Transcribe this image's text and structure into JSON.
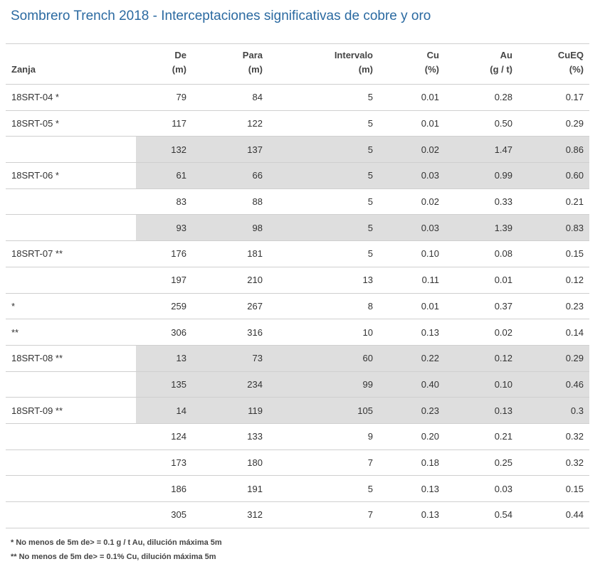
{
  "title": "Sombrero Trench 2018 - Interceptaciones significativas de cobre y oro",
  "headers": {
    "zanja": "Zanja",
    "de": [
      "De",
      "(m)"
    ],
    "para": [
      "Para",
      "(m)"
    ],
    "intervalo": [
      "Intervalo",
      "(m)"
    ],
    "cu": [
      "Cu",
      "(%)"
    ],
    "au": [
      "Au",
      "(g / t)"
    ],
    "cueq": [
      "CuEQ",
      "(%)"
    ]
  },
  "rows": [
    {
      "zanja": "18SRT-04 *",
      "de": "79",
      "para": "84",
      "intervalo": "5",
      "cu": "0.01",
      "au": "0.28",
      "cueq": "0.17",
      "shaded": false
    },
    {
      "zanja": "18SRT-05 *",
      "de": "117",
      "para": "122",
      "intervalo": "5",
      "cu": "0.01",
      "au": "0.50",
      "cueq": "0.29",
      "shaded": false
    },
    {
      "zanja": "",
      "de": "132",
      "para": "137",
      "intervalo": "5",
      "cu": "0.02",
      "au": "1.47",
      "cueq": "0.86",
      "shaded": true
    },
    {
      "zanja": "18SRT-06 *",
      "de": "61",
      "para": "66",
      "intervalo": "5",
      "cu": "0.03",
      "au": "0.99",
      "cueq": "0.60",
      "shaded": true
    },
    {
      "zanja": "",
      "de": "83",
      "para": "88",
      "intervalo": "5",
      "cu": "0.02",
      "au": "0.33",
      "cueq": "0.21",
      "shaded": false
    },
    {
      "zanja": "",
      "de": "93",
      "para": "98",
      "intervalo": "5",
      "cu": "0.03",
      "au": "1.39",
      "cueq": "0.83",
      "shaded": true
    },
    {
      "zanja": "18SRT-07 **",
      "de": "176",
      "para": "181",
      "intervalo": "5",
      "cu": "0.10",
      "au": "0.08",
      "cueq": "0.15",
      "shaded": false
    },
    {
      "zanja": "",
      "de": "197",
      "para": "210",
      "intervalo": "13",
      "cu": "0.11",
      "au": "0.01",
      "cueq": "0.12",
      "shaded": false
    },
    {
      "zanja": "*",
      "de": "259",
      "para": "267",
      "intervalo": "8",
      "cu": "0.01",
      "au": "0.37",
      "cueq": "0.23",
      "shaded": false
    },
    {
      "zanja": "**",
      "de": "306",
      "para": "316",
      "intervalo": "10",
      "cu": "0.13",
      "au": "0.02",
      "cueq": "0.14",
      "shaded": false
    },
    {
      "zanja": "18SRT-08 **",
      "de": "13",
      "para": "73",
      "intervalo": "60",
      "cu": "0.22",
      "au": "0.12",
      "cueq": "0.29",
      "shaded": true
    },
    {
      "zanja": "",
      "de": "135",
      "para": "234",
      "intervalo": "99",
      "cu": "0.40",
      "au": "0.10",
      "cueq": "0.46",
      "shaded": true
    },
    {
      "zanja": "18SRT-09 **",
      "de": "14",
      "para": "119",
      "intervalo": "105",
      "cu": "0.23",
      "au": "0.13",
      "cueq": "0.3",
      "shaded": true
    },
    {
      "zanja": "",
      "de": "124",
      "para": "133",
      "intervalo": "9",
      "cu": "0.20",
      "au": "0.21",
      "cueq": "0.32",
      "shaded": false
    },
    {
      "zanja": "",
      "de": "173",
      "para": "180",
      "intervalo": "7",
      "cu": "0.18",
      "au": "0.25",
      "cueq": "0.32",
      "shaded": false
    },
    {
      "zanja": "",
      "de": "186",
      "para": "191",
      "intervalo": "5",
      "cu": "0.13",
      "au": "0.03",
      "cueq": "0.15",
      "shaded": false
    },
    {
      "zanja": "",
      "de": "305",
      "para": "312",
      "intervalo": "7",
      "cu": "0.13",
      "au": "0.54",
      "cueq": "0.44",
      "shaded": false
    }
  ],
  "footnotes": [
    "* No menos de 5m de> = 0.1 g / t Au, dilución máxima 5m",
    "** No menos de 5m de> = 0.1% Cu, dilución máxima 5m"
  ]
}
